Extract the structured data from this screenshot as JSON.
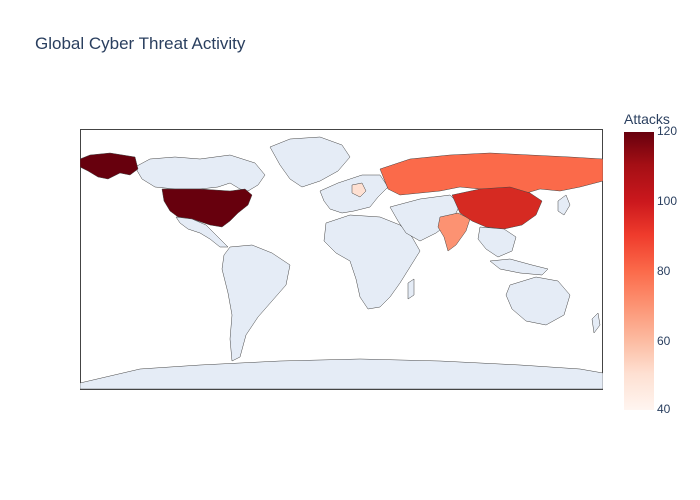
{
  "title": "Global Cyber Threat Activity",
  "colorbar": {
    "title": "Attacks",
    "ticks": [
      "120",
      "100",
      "80",
      "60",
      "40"
    ],
    "range": [
      40,
      120
    ],
    "colorscale": [
      "#fff5f0",
      "#fee0d2",
      "#fcbba1",
      "#fc9272",
      "#fb6a4a",
      "#ef3b2c",
      "#cb181d",
      "#a50f15",
      "#67000d"
    ]
  },
  "map": {
    "projection": "equirectangular",
    "land_color": "#e5ecf6",
    "border_color": "#444444"
  },
  "colors": {
    "usa": "#67000d",
    "china": "#d62a22",
    "russia": "#fb6a4a",
    "india": "#fc9272",
    "germany": "#fee0d2"
  }
}
